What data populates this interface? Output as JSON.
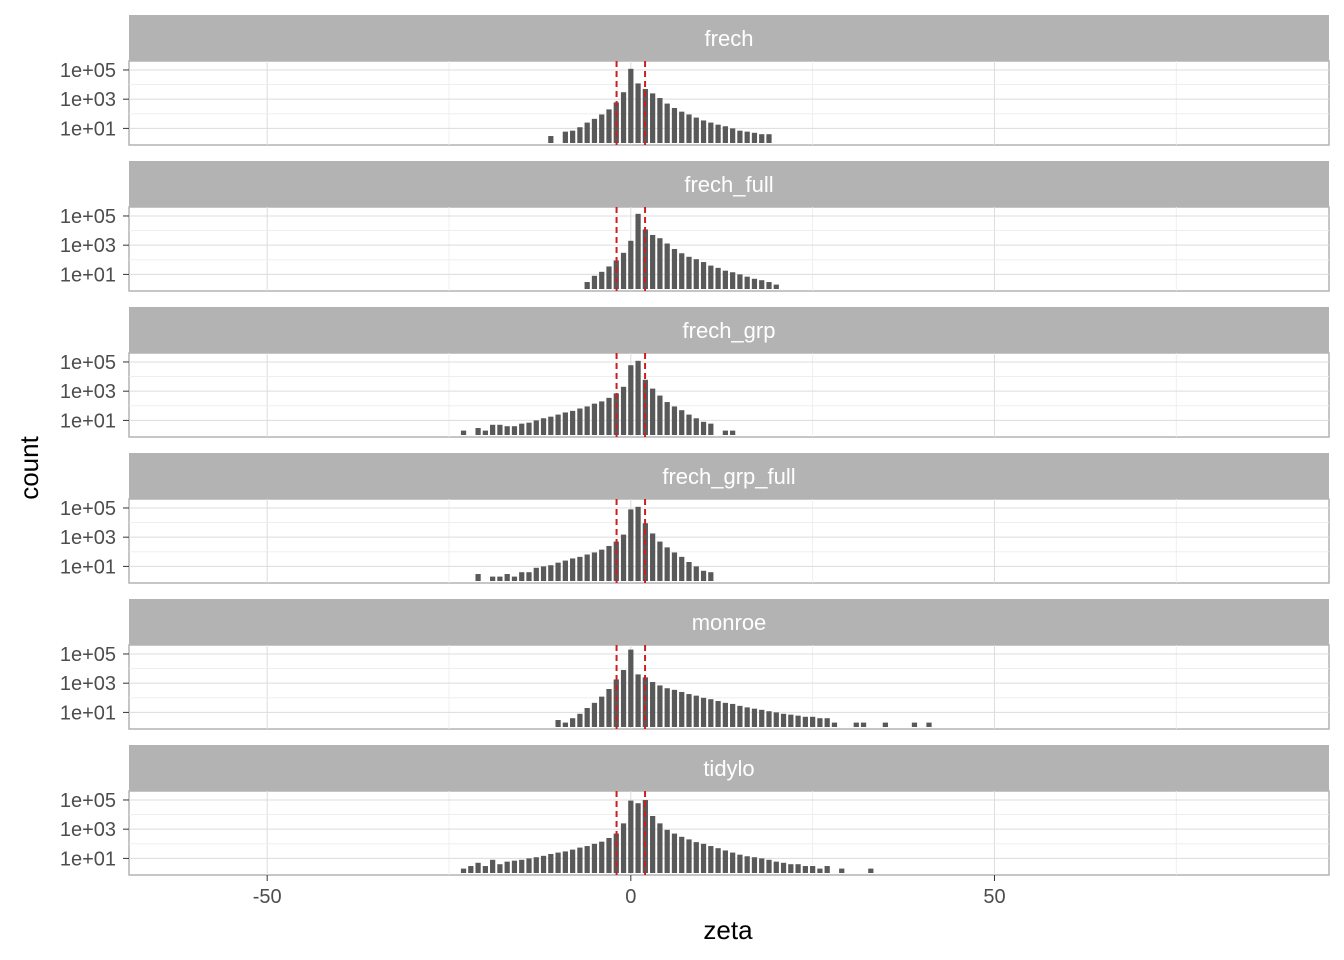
{
  "chart_data": {
    "type": "bar",
    "subtype": "faceted histogram, log-scaled count axis",
    "xlabel": "zeta",
    "ylabel": "count",
    "x_ticks": [
      -50,
      0,
      50
    ],
    "y_scale": "log10",
    "y_ticks": [
      10,
      1000,
      100000
    ],
    "y_tick_labels": [
      "1e+01",
      "1e+03",
      "1e+05"
    ],
    "xlim": [
      -69,
      96
    ],
    "ylim": [
      1,
      300000
    ],
    "reference_lines_x": [
      -1.96,
      1.96
    ],
    "reference_line_color": "#cc1f1f",
    "bar_color": "#595959",
    "grid": true,
    "facets": [
      {
        "name": "frech",
        "x": [
          -11,
          -9,
          -8,
          -7,
          -6,
          -5,
          -4,
          -3,
          -2,
          -1,
          0,
          1,
          2,
          3,
          4,
          5,
          6,
          7,
          8,
          9,
          10,
          11,
          12,
          13,
          14,
          15,
          16,
          17,
          18,
          19
        ],
        "values": [
          3,
          6,
          7,
          12,
          25,
          45,
          90,
          200,
          600,
          3000,
          120000,
          12000,
          5000,
          2500,
          1200,
          500,
          250,
          140,
          90,
          55,
          35,
          25,
          18,
          14,
          10,
          7,
          6,
          5,
          4,
          4
        ]
      },
      {
        "name": "frech_full",
        "x": [
          -6,
          -5,
          -4,
          -3,
          -2,
          -1,
          0,
          1,
          2,
          3,
          4,
          5,
          6,
          7,
          8,
          9,
          10,
          11,
          12,
          13,
          14,
          15,
          16,
          17,
          18,
          19,
          20
        ],
        "values": [
          3,
          8,
          15,
          35,
          90,
          300,
          2000,
          140000,
          12000,
          5000,
          3000,
          1300,
          550,
          280,
          160,
          110,
          70,
          40,
          28,
          18,
          14,
          10,
          7,
          5,
          4,
          3,
          2
        ]
      },
      {
        "name": "frech_grp",
        "x": [
          -23,
          -21,
          -20,
          -19,
          -18,
          -17,
          -16,
          -15,
          -14,
          -13,
          -12,
          -11,
          -10,
          -9,
          -8,
          -7,
          -6,
          -5,
          -4,
          -3,
          -2,
          -1,
          0,
          1,
          2,
          3,
          4,
          5,
          6,
          7,
          8,
          9,
          10,
          11,
          13,
          14
        ],
        "values": [
          2,
          3,
          2,
          5,
          5,
          4,
          4,
          6,
          7,
          10,
          14,
          18,
          25,
          35,
          45,
          65,
          90,
          140,
          200,
          350,
          700,
          2000,
          60000,
          120000,
          6000,
          1500,
          500,
          180,
          90,
          50,
          25,
          14,
          8,
          6,
          2,
          2
        ]
      },
      {
        "name": "frech_grp_full",
        "x": [
          -21,
          -19,
          -18,
          -17,
          -16,
          -15,
          -14,
          -13,
          -12,
          -11,
          -10,
          -9,
          -8,
          -7,
          -6,
          -5,
          -4,
          -3,
          -2,
          -1,
          0,
          1,
          2,
          3,
          4,
          5,
          6,
          7,
          8,
          9,
          10,
          11
        ],
        "values": [
          3,
          2,
          2,
          3,
          2,
          4,
          4,
          8,
          10,
          12,
          18,
          25,
          35,
          45,
          65,
          90,
          140,
          250,
          500,
          1500,
          80000,
          120000,
          9000,
          1800,
          500,
          200,
          90,
          45,
          20,
          10,
          5,
          4
        ]
      },
      {
        "name": "monroe",
        "x": [
          -10,
          -9,
          -8,
          -7,
          -6,
          -5,
          -4,
          -3,
          -2,
          -1,
          0,
          1,
          2,
          3,
          4,
          5,
          6,
          7,
          8,
          9,
          10,
          11,
          12,
          13,
          14,
          15,
          16,
          17,
          18,
          19,
          20,
          21,
          22,
          23,
          24,
          25,
          26,
          27,
          28,
          31,
          32,
          35,
          39,
          41
        ],
        "values": [
          3,
          2,
          4,
          8,
          20,
          45,
          120,
          400,
          1800,
          8000,
          200000,
          4000,
          2500,
          1200,
          700,
          450,
          350,
          250,
          180,
          140,
          100,
          80,
          60,
          45,
          38,
          28,
          22,
          18,
          15,
          12,
          10,
          8,
          7,
          6,
          5,
          5,
          4,
          4,
          2,
          2,
          2,
          2,
          2,
          2
        ]
      },
      {
        "name": "tidylo",
        "x": [
          -23,
          -22,
          -21,
          -20,
          -19,
          -18,
          -17,
          -16,
          -15,
          -14,
          -13,
          -12,
          -11,
          -10,
          -9,
          -8,
          -7,
          -6,
          -5,
          -4,
          -3,
          -2,
          -1,
          0,
          1,
          2,
          3,
          4,
          5,
          6,
          7,
          8,
          9,
          10,
          11,
          12,
          13,
          14,
          15,
          16,
          17,
          18,
          19,
          20,
          21,
          22,
          23,
          24,
          25,
          26,
          27,
          29,
          33
        ],
        "values": [
          2,
          3,
          5,
          3,
          8,
          4,
          6,
          7,
          8,
          10,
          12,
          15,
          20,
          25,
          30,
          40,
          55,
          70,
          100,
          140,
          250,
          500,
          2500,
          90000,
          60000,
          100000,
          8000,
          2500,
          900,
          500,
          300,
          200,
          130,
          100,
          70,
          50,
          35,
          25,
          18,
          14,
          12,
          10,
          8,
          6,
          5,
          4,
          4,
          3,
          3,
          2,
          3,
          2,
          2
        ]
      }
    ]
  }
}
